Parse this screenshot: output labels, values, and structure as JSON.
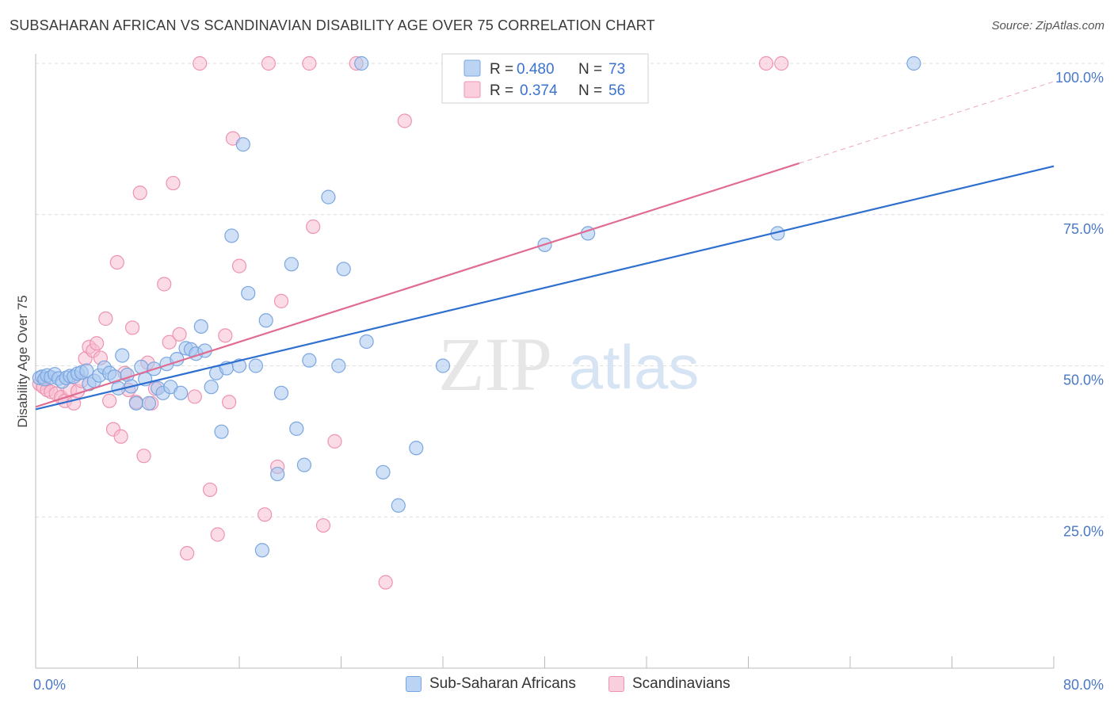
{
  "title": "SUBSAHARAN AFRICAN VS SCANDINAVIAN DISABILITY AGE OVER 75 CORRELATION CHART",
  "source": "Source: ZipAtlas.com",
  "watermark": {
    "zip": "ZIP",
    "atlas": "atlas"
  },
  "colors": {
    "blue_fill": "#a9c8f0",
    "blue_stroke": "#7aa6e0",
    "blue_line": "#2e6fd0",
    "pink_fill": "#f7bdd0",
    "pink_stroke": "#ee93b2",
    "pink_line": "#e06c92",
    "tick_text": "#4a78c8",
    "grid": "#dddddd"
  },
  "legend": {
    "r_label": "R =",
    "n_label": "N =",
    "rows": [
      {
        "r": "0.480",
        "n": "73",
        "color": "blue"
      },
      {
        "r": "0.374",
        "n": "56",
        "color": "pink"
      }
    ]
  },
  "bottom_legend": [
    {
      "label": "Sub-Saharan Africans",
      "color": "blue"
    },
    {
      "label": "Scandinavians",
      "color": "pink"
    }
  ],
  "chart_data": {
    "type": "scatter",
    "xlabel": "",
    "ylabel": "Disability Age Over 75",
    "xlim": [
      0,
      80
    ],
    "ylim": [
      0,
      102
    ],
    "x_tick_labels": [
      {
        "value": 0,
        "label": "0.0%"
      },
      {
        "value": 80,
        "label": "80.0%"
      }
    ],
    "y_tick_labels": [
      {
        "value": 25,
        "label": "25.0%"
      },
      {
        "value": 50,
        "label": "50.0%"
      },
      {
        "value": 75,
        "label": "75.0%"
      },
      {
        "value": 100,
        "label": "100.0%"
      }
    ],
    "grid": true,
    "legend_position": "top-center",
    "series": [
      {
        "name": "Sub-Saharan Africans",
        "color": "blue",
        "trend": {
          "x": [
            0,
            80
          ],
          "y": [
            42.8,
            83
          ]
        },
        "points": [
          [
            0.3,
            48
          ],
          [
            0.5,
            48.2
          ],
          [
            0.7,
            47.8
          ],
          [
            0.9,
            48.4
          ],
          [
            1.2,
            48.1
          ],
          [
            1.5,
            48.6
          ],
          [
            1.8,
            47.9
          ],
          [
            2.1,
            47.4
          ],
          [
            2.4,
            48
          ],
          [
            2.7,
            48.3
          ],
          [
            3,
            48.2
          ],
          [
            3.3,
            48.7
          ],
          [
            3.6,
            48.9
          ],
          [
            4,
            49.2
          ],
          [
            4.2,
            47
          ],
          [
            4.6,
            47.5
          ],
          [
            5,
            48.4
          ],
          [
            5.4,
            49.7
          ],
          [
            5.8,
            48.8
          ],
          [
            6.2,
            48.2
          ],
          [
            6.5,
            46.3
          ],
          [
            6.8,
            51.7
          ],
          [
            7.2,
            48.5
          ],
          [
            7.5,
            46.6
          ],
          [
            7.9,
            43.8
          ],
          [
            8.3,
            49.8
          ],
          [
            8.6,
            47.8
          ],
          [
            8.9,
            43.8
          ],
          [
            9.3,
            49.5
          ],
          [
            9.6,
            46.3
          ],
          [
            10,
            45.5
          ],
          [
            10.3,
            50.3
          ],
          [
            10.6,
            46.5
          ],
          [
            11.1,
            51.1
          ],
          [
            11.4,
            45.5
          ],
          [
            11.8,
            52.9
          ],
          [
            12.2,
            52.7
          ],
          [
            12.6,
            52
          ],
          [
            13,
            56.5
          ],
          [
            13.3,
            52.5
          ],
          [
            13.8,
            46.5
          ],
          [
            14.2,
            48.8
          ],
          [
            14.6,
            39.1
          ],
          [
            15,
            49.6
          ],
          [
            15.4,
            71.5
          ],
          [
            16,
            50
          ],
          [
            16.3,
            86.6
          ],
          [
            16.7,
            62
          ],
          [
            17.3,
            50
          ],
          [
            17.8,
            19.5
          ],
          [
            18.1,
            57.5
          ],
          [
            19,
            32.1
          ],
          [
            19.3,
            45.5
          ],
          [
            20.1,
            66.8
          ],
          [
            20.5,
            39.6
          ],
          [
            21.1,
            33.6
          ],
          [
            21.5,
            50.9
          ],
          [
            23,
            77.9
          ],
          [
            23.8,
            50
          ],
          [
            24.2,
            66
          ],
          [
            25.6,
            100
          ],
          [
            26,
            54
          ],
          [
            27.3,
            32.4
          ],
          [
            28.5,
            26.9
          ],
          [
            29.9,
            36.4
          ],
          [
            32,
            50
          ],
          [
            36.3,
            100
          ],
          [
            40,
            70
          ],
          [
            41.5,
            100
          ],
          [
            43.4,
            71.9
          ],
          [
            45.9,
            100
          ],
          [
            58.3,
            71.9
          ],
          [
            69,
            100
          ]
        ]
      },
      {
        "name": "Scandinavians",
        "color": "pink",
        "trend": {
          "x": [
            0,
            60
          ],
          "y": [
            43.2,
            83.5
          ]
        },
        "trend_dashed": {
          "x": [
            60,
            80
          ],
          "y": [
            83.5,
            97
          ]
        },
        "points": [
          [
            0.3,
            47
          ],
          [
            0.6,
            46.5
          ],
          [
            0.9,
            46
          ],
          [
            1.2,
            45.7
          ],
          [
            1.6,
            45.4
          ],
          [
            2,
            44.8
          ],
          [
            2.3,
            44.2
          ],
          [
            2.7,
            46
          ],
          [
            3,
            43.8
          ],
          [
            3.3,
            45.8
          ],
          [
            3.6,
            47.5
          ],
          [
            3.9,
            51.2
          ],
          [
            4.2,
            53.1
          ],
          [
            4.5,
            52.5
          ],
          [
            4.8,
            53.7
          ],
          [
            5.1,
            51.3
          ],
          [
            5.5,
            57.8
          ],
          [
            5.8,
            44.2
          ],
          [
            6.1,
            39.5
          ],
          [
            6.4,
            67.1
          ],
          [
            6.7,
            38.3
          ],
          [
            7,
            48.8
          ],
          [
            7.3,
            46
          ],
          [
            7.6,
            56.3
          ],
          [
            7.9,
            44
          ],
          [
            8.2,
            78.6
          ],
          [
            8.5,
            35.1
          ],
          [
            8.8,
            50.5
          ],
          [
            9.1,
            43.8
          ],
          [
            9.4,
            46.2
          ],
          [
            10.1,
            63.5
          ],
          [
            10.5,
            53.9
          ],
          [
            10.8,
            80.2
          ],
          [
            11.3,
            55.2
          ],
          [
            11.9,
            19
          ],
          [
            12.5,
            44.9
          ],
          [
            12.9,
            100
          ],
          [
            13.7,
            29.5
          ],
          [
            14.3,
            22.1
          ],
          [
            14.9,
            55
          ],
          [
            15.2,
            44
          ],
          [
            15.5,
            87.6
          ],
          [
            16,
            66.5
          ],
          [
            18,
            25.4
          ],
          [
            18.3,
            100
          ],
          [
            19,
            33.3
          ],
          [
            19.3,
            60.7
          ],
          [
            21.5,
            100
          ],
          [
            21.8,
            73
          ],
          [
            22.6,
            23.6
          ],
          [
            23.5,
            37.5
          ],
          [
            25.2,
            100
          ],
          [
            27.5,
            14.2
          ],
          [
            29,
            90.5
          ],
          [
            57.4,
            100
          ],
          [
            58.6,
            100
          ]
        ]
      }
    ]
  }
}
